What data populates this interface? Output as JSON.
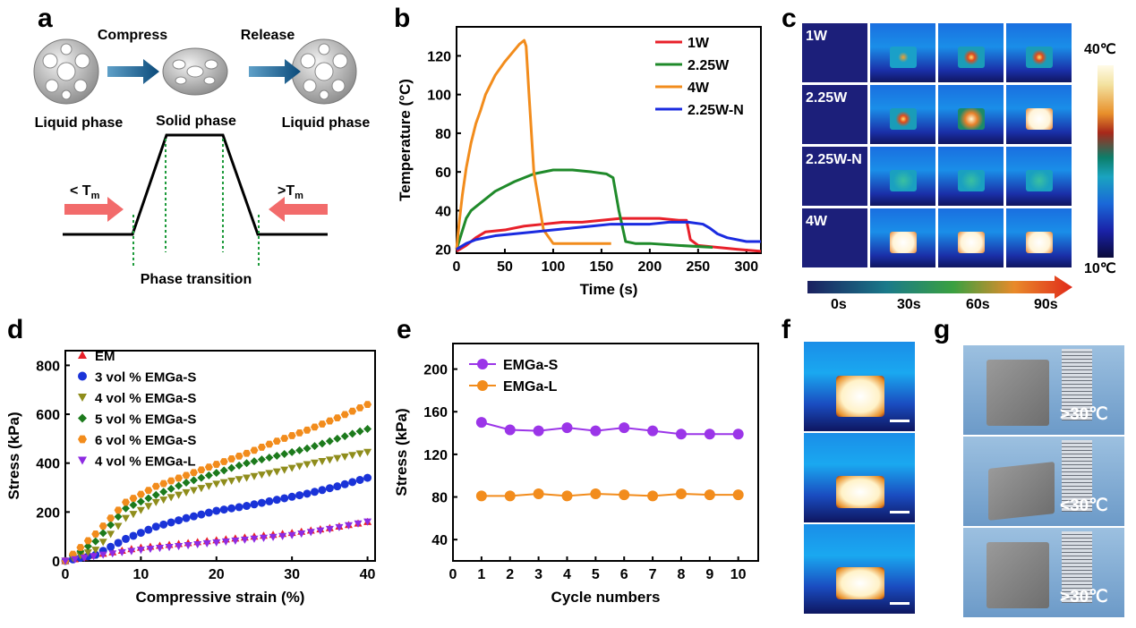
{
  "panels": {
    "a": "a",
    "b": "b",
    "c": "c",
    "d": "d",
    "e": "e",
    "f": "f",
    "g": "g"
  },
  "panel_a": {
    "compress": "Compress",
    "release": "Release",
    "liquid_left": "Liquid phase",
    "solid": "Solid phase",
    "liquid_right": "Liquid phase",
    "lt_tm": "< T",
    "gt_tm": ">T",
    "tm_sub": "m",
    "phase_transition": "Phase transition"
  },
  "panel_c": {
    "rows": [
      "1W",
      "2.25W",
      "2.25W-N",
      "4W"
    ],
    "scale_max": "40℃",
    "scale_min": "10℃",
    "time_labels": [
      "0s",
      "30s",
      "60s",
      "90s"
    ]
  },
  "panel_g": {
    "labels": [
      ">30℃",
      "<30℃",
      ">30℃"
    ]
  },
  "colors": {
    "b_1W": "#e8202a",
    "b_2.25W": "#1f8a2a",
    "b_4W": "#f28c1c",
    "b_2.25W-N": "#1a2be0",
    "d_EM": "#e8202a",
    "d_3S": "#1a33d8",
    "d_4S": "#8f8d1c",
    "d_5S": "#1c7a1c",
    "d_6S": "#f28c1c",
    "d_4L": "#8e2be2",
    "e_S": "#9b35e8",
    "e_L": "#f28c1c"
  },
  "chart_data": [
    {
      "id": "b",
      "type": "line",
      "xlabel": "Time (s)",
      "ylabel": "Temperature (°C)",
      "xlim": [
        0,
        315
      ],
      "ylim": [
        18,
        135
      ],
      "xticks": [
        0,
        50,
        100,
        150,
        200,
        250,
        300
      ],
      "yticks": [
        20,
        40,
        60,
        80,
        100,
        120
      ],
      "legend": "top-right",
      "series": [
        {
          "name": "1W",
          "x": [
            0,
            10,
            20,
            30,
            50,
            70,
            90,
            110,
            130,
            150,
            170,
            190,
            210,
            230,
            238,
            242,
            250,
            270,
            290,
            315
          ],
          "y": [
            19,
            22,
            26,
            29,
            30,
            32,
            33,
            34,
            34,
            35,
            36,
            36,
            36,
            35,
            35,
            25,
            22,
            21,
            20,
            19
          ]
        },
        {
          "name": "2.25W",
          "x": [
            0,
            5,
            10,
            15,
            20,
            30,
            40,
            60,
            80,
            100,
            120,
            140,
            155,
            162,
            168,
            175,
            185,
            200,
            230,
            265
          ],
          "y": [
            20,
            28,
            36,
            40,
            42,
            46,
            50,
            55,
            59,
            61,
            61,
            60,
            59,
            57,
            40,
            24,
            23,
            23,
            22,
            21
          ]
        },
        {
          "name": "4W",
          "x": [
            0,
            3,
            6,
            10,
            15,
            20,
            25,
            30,
            40,
            50,
            60,
            65,
            70,
            72,
            75,
            80,
            90,
            100,
            120,
            160
          ],
          "y": [
            20,
            35,
            48,
            62,
            75,
            85,
            92,
            100,
            110,
            117,
            123,
            126,
            128,
            125,
            100,
            60,
            30,
            23,
            23,
            23
          ]
        },
        {
          "name": "2.25W-N",
          "x": [
            0,
            10,
            20,
            40,
            60,
            80,
            100,
            120,
            140,
            160,
            180,
            200,
            220,
            240,
            255,
            262,
            270,
            280,
            300,
            315
          ],
          "y": [
            20,
            23,
            25,
            27,
            28,
            29,
            30,
            31,
            32,
            33,
            33,
            33,
            34,
            34,
            33,
            31,
            28,
            26,
            24,
            24
          ]
        }
      ]
    },
    {
      "id": "d",
      "type": "scatter",
      "xlabel": "Compressive strain (%)",
      "ylabel": "Stress (kPa)",
      "xlim": [
        0,
        41
      ],
      "ylim": [
        0,
        860
      ],
      "xticks": [
        0,
        10,
        20,
        30,
        40
      ],
      "yticks": [
        0,
        200,
        400,
        600,
        800
      ],
      "legend": "top-left",
      "series": [
        {
          "name": "EM",
          "shape": "tri-up",
          "points": [
            [
              0,
              0
            ],
            [
              5,
              30
            ],
            [
              10,
              55
            ],
            [
              15,
              70
            ],
            [
              20,
              85
            ],
            [
              25,
              100
            ],
            [
              30,
              115
            ],
            [
              35,
              135
            ],
            [
              40,
              160
            ]
          ]
        },
        {
          "name": "3 vol % EMGa-S",
          "shape": "circle",
          "points": [
            [
              0,
              0
            ],
            [
              4,
              25
            ],
            [
              8,
              90
            ],
            [
              12,
              140
            ],
            [
              16,
              175
            ],
            [
              20,
              205
            ],
            [
              24,
              225
            ],
            [
              28,
              250
            ],
            [
              32,
              275
            ],
            [
              36,
              305
            ],
            [
              40,
              340
            ]
          ]
        },
        {
          "name": "4 vol % EMGa-S",
          "shape": "tri-down",
          "points": [
            [
              0,
              0
            ],
            [
              4,
              45
            ],
            [
              8,
              175
            ],
            [
              12,
              240
            ],
            [
              16,
              280
            ],
            [
              20,
              315
            ],
            [
              24,
              340
            ],
            [
              28,
              365
            ],
            [
              32,
              395
            ],
            [
              36,
              420
            ],
            [
              40,
              445
            ]
          ]
        },
        {
          "name": "5 vol % EMGa-S",
          "shape": "diamond",
          "points": [
            [
              0,
              0
            ],
            [
              4,
              80
            ],
            [
              8,
              215
            ],
            [
              12,
              270
            ],
            [
              16,
              320
            ],
            [
              20,
              360
            ],
            [
              24,
              400
            ],
            [
              28,
              430
            ],
            [
              32,
              460
            ],
            [
              36,
              500
            ],
            [
              40,
              540
            ]
          ]
        },
        {
          "name": "6 vol % EMGa-S",
          "shape": "hexagon",
          "points": [
            [
              0,
              0
            ],
            [
              4,
              110
            ],
            [
              8,
              240
            ],
            [
              12,
              305
            ],
            [
              16,
              350
            ],
            [
              20,
              395
            ],
            [
              24,
              440
            ],
            [
              28,
              490
            ],
            [
              32,
              535
            ],
            [
              36,
              585
            ],
            [
              40,
              640
            ]
          ]
        },
        {
          "name": "4 vol % EMGa-L",
          "shape": "tri-down",
          "points": [
            [
              0,
              0
            ],
            [
              5,
              25
            ],
            [
              10,
              45
            ],
            [
              15,
              60
            ],
            [
              20,
              75
            ],
            [
              25,
              90
            ],
            [
              30,
              105
            ],
            [
              35,
              130
            ],
            [
              40,
              160
            ]
          ]
        }
      ]
    },
    {
      "id": "e",
      "type": "line",
      "xlabel": "Cycle numbers",
      "ylabel": "Stress (kPa)",
      "xlim": [
        0,
        10.7
      ],
      "ylim": [
        20,
        224
      ],
      "xticks": [
        0,
        1,
        2,
        3,
        4,
        5,
        6,
        7,
        8,
        9,
        10
      ],
      "yticks": [
        40,
        80,
        120,
        160,
        200
      ],
      "legend": "top-left",
      "series": [
        {
          "name": "EMGa-S",
          "x": [
            1,
            2,
            3,
            4,
            5,
            6,
            7,
            8,
            9,
            10
          ],
          "y": [
            150,
            143,
            142,
            145,
            142,
            145,
            142,
            139,
            139,
            139
          ]
        },
        {
          "name": "EMGa-L",
          "x": [
            1,
            2,
            3,
            4,
            5,
            6,
            7,
            8,
            9,
            10
          ],
          "y": [
            81,
            81,
            83,
            81,
            83,
            82,
            81,
            83,
            82,
            82
          ]
        }
      ]
    }
  ]
}
